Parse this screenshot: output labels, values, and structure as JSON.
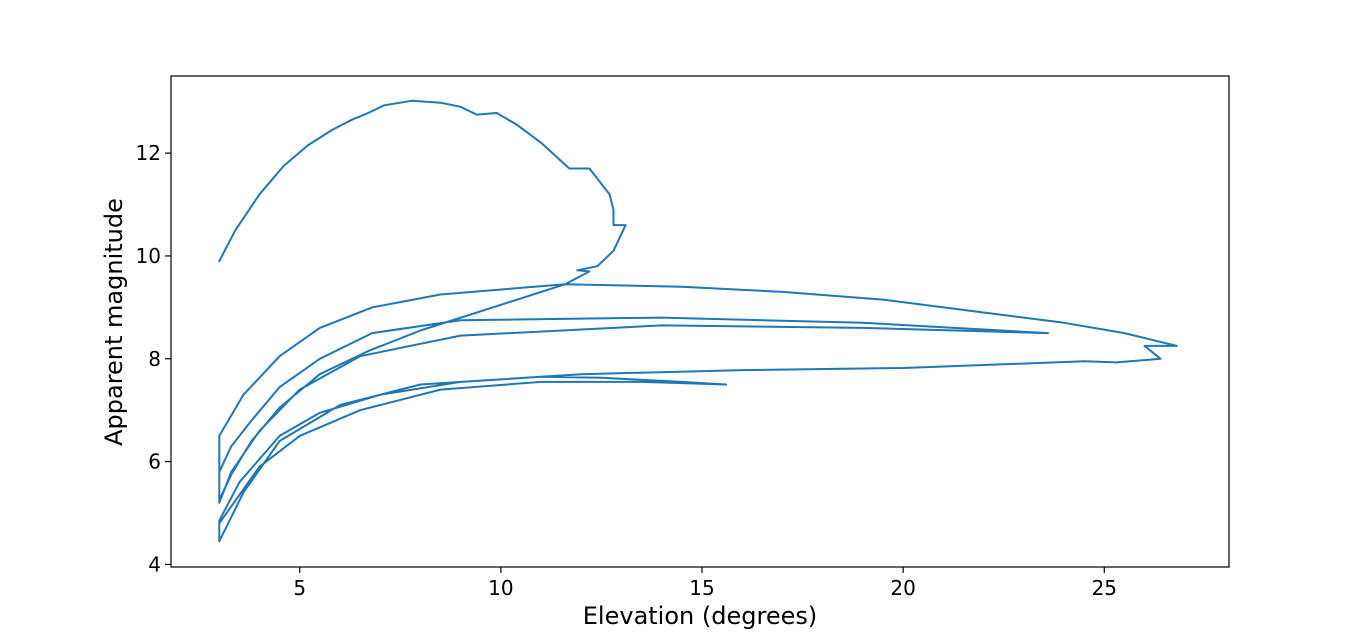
{
  "chart_data": {
    "type": "line",
    "title": "",
    "xlabel": "Elevation (degrees)",
    "ylabel": "Apparent magnitude",
    "xlim": [
      1.8,
      28.1
    ],
    "ylim": [
      3.95,
      13.5
    ],
    "xticks": [
      5,
      10,
      15,
      20,
      25
    ],
    "yticks": [
      4,
      6,
      8,
      10,
      12
    ],
    "grid": false,
    "line_color": "#1f77b4",
    "series": [
      {
        "values": [
          [
            3.0,
            9.9
          ],
          [
            3.4,
            10.5
          ],
          [
            4.0,
            11.2
          ],
          [
            4.6,
            11.75
          ],
          [
            5.2,
            12.15
          ],
          [
            5.8,
            12.45
          ],
          [
            6.3,
            12.65
          ],
          [
            6.7,
            12.78
          ],
          [
            7.1,
            12.93
          ],
          [
            7.8,
            13.02
          ],
          [
            8.5,
            12.98
          ],
          [
            9.0,
            12.9
          ],
          [
            9.4,
            12.75
          ],
          [
            9.9,
            12.78
          ],
          [
            10.4,
            12.55
          ],
          [
            11.0,
            12.2
          ],
          [
            11.7,
            11.7
          ],
          [
            12.2,
            11.7
          ],
          [
            12.7,
            11.2
          ],
          [
            12.8,
            10.9
          ],
          [
            12.8,
            10.6
          ],
          [
            13.1,
            10.6
          ],
          [
            12.8,
            10.1
          ],
          [
            12.4,
            9.8
          ],
          [
            11.9,
            9.72
          ],
          [
            12.2,
            9.7
          ],
          [
            11.6,
            9.45
          ],
          [
            10.0,
            9.05
          ],
          [
            8.0,
            8.55
          ],
          [
            6.7,
            8.15
          ],
          [
            5.5,
            7.7
          ],
          [
            4.5,
            7.05
          ],
          [
            3.8,
            6.4
          ],
          [
            3.3,
            5.75
          ],
          [
            3.0,
            5.25
          ],
          [
            3.0,
            5.8
          ],
          [
            3.3,
            6.3
          ],
          [
            3.8,
            6.8
          ],
          [
            4.5,
            7.45
          ],
          [
            5.5,
            8.0
          ],
          [
            6.8,
            8.5
          ],
          [
            9.0,
            8.75
          ],
          [
            14.0,
            8.8
          ],
          [
            19.0,
            8.7
          ],
          [
            23.6,
            8.5
          ],
          [
            19.0,
            8.6
          ],
          [
            14.0,
            8.65
          ],
          [
            9.0,
            8.45
          ],
          [
            6.5,
            8.05
          ],
          [
            5.0,
            7.4
          ],
          [
            4.0,
            6.6
          ],
          [
            3.3,
            5.8
          ],
          [
            3.0,
            5.2
          ],
          [
            3.0,
            6.5
          ],
          [
            3.6,
            7.3
          ],
          [
            4.5,
            8.05
          ],
          [
            5.5,
            8.6
          ],
          [
            6.8,
            9.0
          ],
          [
            8.5,
            9.25
          ],
          [
            11.6,
            9.45
          ],
          [
            14.5,
            9.4
          ],
          [
            17.0,
            9.3
          ],
          [
            19.5,
            9.15
          ],
          [
            22.0,
            8.9
          ],
          [
            24.0,
            8.7
          ],
          [
            25.5,
            8.5
          ],
          [
            26.8,
            8.25
          ],
          [
            26.0,
            8.25
          ],
          [
            26.4,
            8.0
          ],
          [
            25.3,
            7.93
          ],
          [
            24.5,
            7.95
          ],
          [
            20.0,
            7.82
          ],
          [
            16.0,
            7.78
          ],
          [
            12.0,
            7.7
          ],
          [
            8.0,
            7.5
          ],
          [
            6.0,
            7.1
          ],
          [
            4.5,
            6.4
          ],
          [
            3.6,
            5.4
          ],
          [
            3.0,
            4.45
          ],
          [
            3.0,
            4.85
          ],
          [
            3.5,
            5.6
          ],
          [
            4.5,
            6.5
          ],
          [
            5.5,
            6.95
          ],
          [
            7.0,
            7.3
          ],
          [
            9.0,
            7.55
          ],
          [
            11.0,
            7.65
          ],
          [
            12.5,
            7.63
          ],
          [
            14.5,
            7.55
          ],
          [
            15.6,
            7.5
          ],
          [
            13.5,
            7.55
          ],
          [
            11.0,
            7.55
          ],
          [
            8.5,
            7.4
          ],
          [
            6.5,
            7.0
          ],
          [
            5.0,
            6.5
          ],
          [
            4.0,
            5.9
          ],
          [
            3.0,
            4.8
          ]
        ]
      }
    ]
  }
}
